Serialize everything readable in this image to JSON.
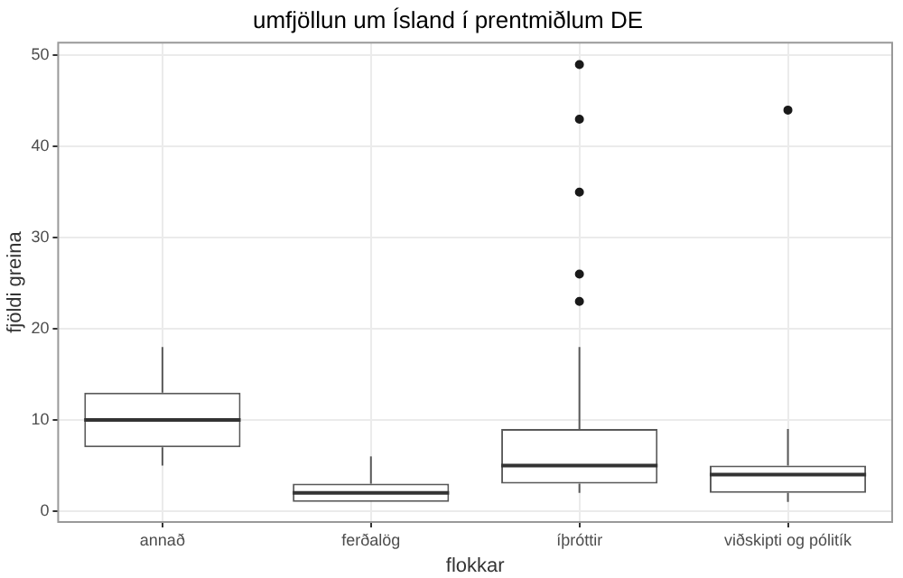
{
  "chart_data": {
    "type": "box",
    "title": "umfjöllun um Ísland í prentmiðlum DE",
    "xlabel": "flokkar",
    "ylabel": "fjöldi greina",
    "categories": [
      "annað",
      "ferðalög",
      "íþróttir",
      "viðskipti og pólitík"
    ],
    "boxes": [
      {
        "low": 5,
        "q1": 7,
        "median": 10,
        "q3": 13,
        "high": 18
      },
      {
        "low": 1,
        "q1": 1,
        "median": 2,
        "q3": 3,
        "high": 6
      },
      {
        "low": 2,
        "q1": 3,
        "median": 5,
        "q3": 9,
        "high": 18,
        "outliers": [
          23,
          26,
          35,
          43,
          49
        ]
      },
      {
        "low": 1,
        "q1": 2,
        "median": 4,
        "q3": 5,
        "high": 9,
        "outliers": [
          44
        ]
      }
    ],
    "color": "#595959",
    "ylim": [
      -1.2,
      51.4
    ],
    "yticks": [
      0,
      10,
      20,
      30,
      40,
      50
    ],
    "grid": true,
    "legend": false
  }
}
